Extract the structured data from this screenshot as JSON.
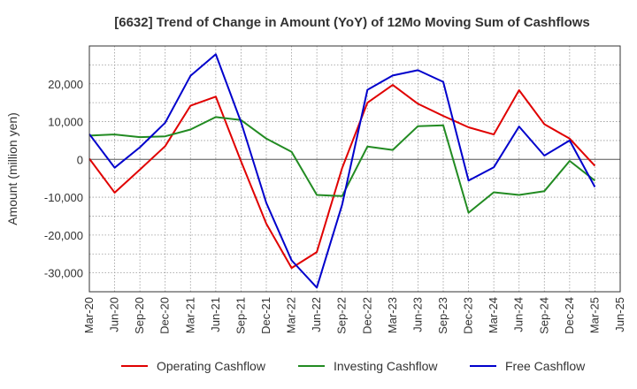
{
  "chart_data": {
    "type": "line",
    "title": "[6632]  Trend of Change in Amount (YoY) of 12Mo Moving Sum of Cashflows",
    "xlabel": "",
    "ylabel": "Amount (million yen)",
    "ylim": [
      -35000,
      30000
    ],
    "yticks": [
      20000,
      10000,
      0,
      -10000,
      -20000,
      -30000
    ],
    "ytick_labels": [
      "20,000",
      "10,000",
      "0",
      "-10,000",
      "-20,000",
      "-30,000"
    ],
    "categories": [
      "Mar-20",
      "Jun-20",
      "Sep-20",
      "Dec-20",
      "Mar-21",
      "Jun-21",
      "Sep-21",
      "Dec-21",
      "Mar-22",
      "Jun-22",
      "Sep-22",
      "Dec-22",
      "Mar-23",
      "Jun-23",
      "Sep-23",
      "Dec-23",
      "Mar-24",
      "Jun-24",
      "Sep-24",
      "Dec-24",
      "Mar-25",
      "Jun-25"
    ],
    "grid": true,
    "legend_position": "bottom",
    "series": [
      {
        "name": "Operating Cashflow",
        "color": "#e00000",
        "values": [
          200,
          -8800,
          -2700,
          3500,
          14200,
          16600,
          -500,
          -17000,
          -28700,
          -24500,
          -2300,
          15000,
          19700,
          14700,
          11500,
          8500,
          6600,
          18300,
          9300,
          5500,
          -1700,
          null
        ]
      },
      {
        "name": "Investing Cashflow",
        "color": "#228b22",
        "values": [
          6300,
          6600,
          5900,
          6100,
          7900,
          11200,
          10400,
          5500,
          2000,
          -9400,
          -9700,
          3400,
          2500,
          8800,
          9000,
          -14100,
          -8700,
          -9400,
          -8400,
          -400,
          -5600,
          null
        ]
      },
      {
        "name": "Free Cashflow",
        "color": "#0000cc",
        "values": [
          6700,
          -2200,
          3200,
          9700,
          22100,
          27800,
          9900,
          -11500,
          -26700,
          -33900,
          -12000,
          18400,
          22200,
          23600,
          20500,
          -5600,
          -2100,
          8700,
          1000,
          5000,
          -7300,
          null
        ]
      }
    ]
  }
}
